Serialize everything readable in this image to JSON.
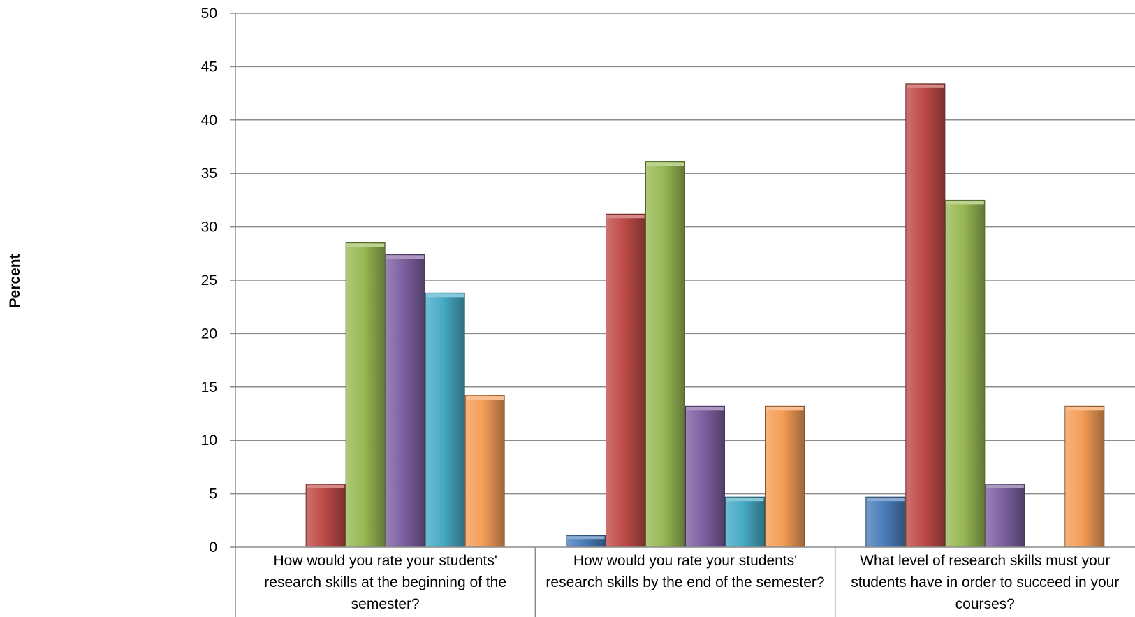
{
  "chart_data": {
    "type": "bar",
    "ylabel": "Percent",
    "ylim": [
      0,
      50
    ],
    "yticks": [
      0,
      5,
      10,
      15,
      20,
      25,
      30,
      35,
      40,
      45,
      50
    ],
    "grid": true,
    "legend": "none",
    "categories": [
      "How would you rate your students' research skills at the beginning of the semester?",
      "How would you rate your students' research skills by the end of the semester?",
      "What level of research skills must your students have in order to succeed in your courses?"
    ],
    "series": [
      {
        "color": "#4a7ebb",
        "values": [
          0,
          1.1,
          4.7
        ]
      },
      {
        "color": "#be4b48",
        "values": [
          5.9,
          31.2,
          43.4
        ]
      },
      {
        "color": "#98b954",
        "values": [
          28.5,
          36.1,
          32.5
        ]
      },
      {
        "color": "#7d60a0",
        "values": [
          27.4,
          13.2,
          5.9
        ]
      },
      {
        "color": "#46aac5",
        "values": [
          23.8,
          4.7,
          0
        ]
      },
      {
        "color": "#f59d56",
        "values": [
          14.2,
          13.2,
          13.2
        ]
      }
    ]
  }
}
